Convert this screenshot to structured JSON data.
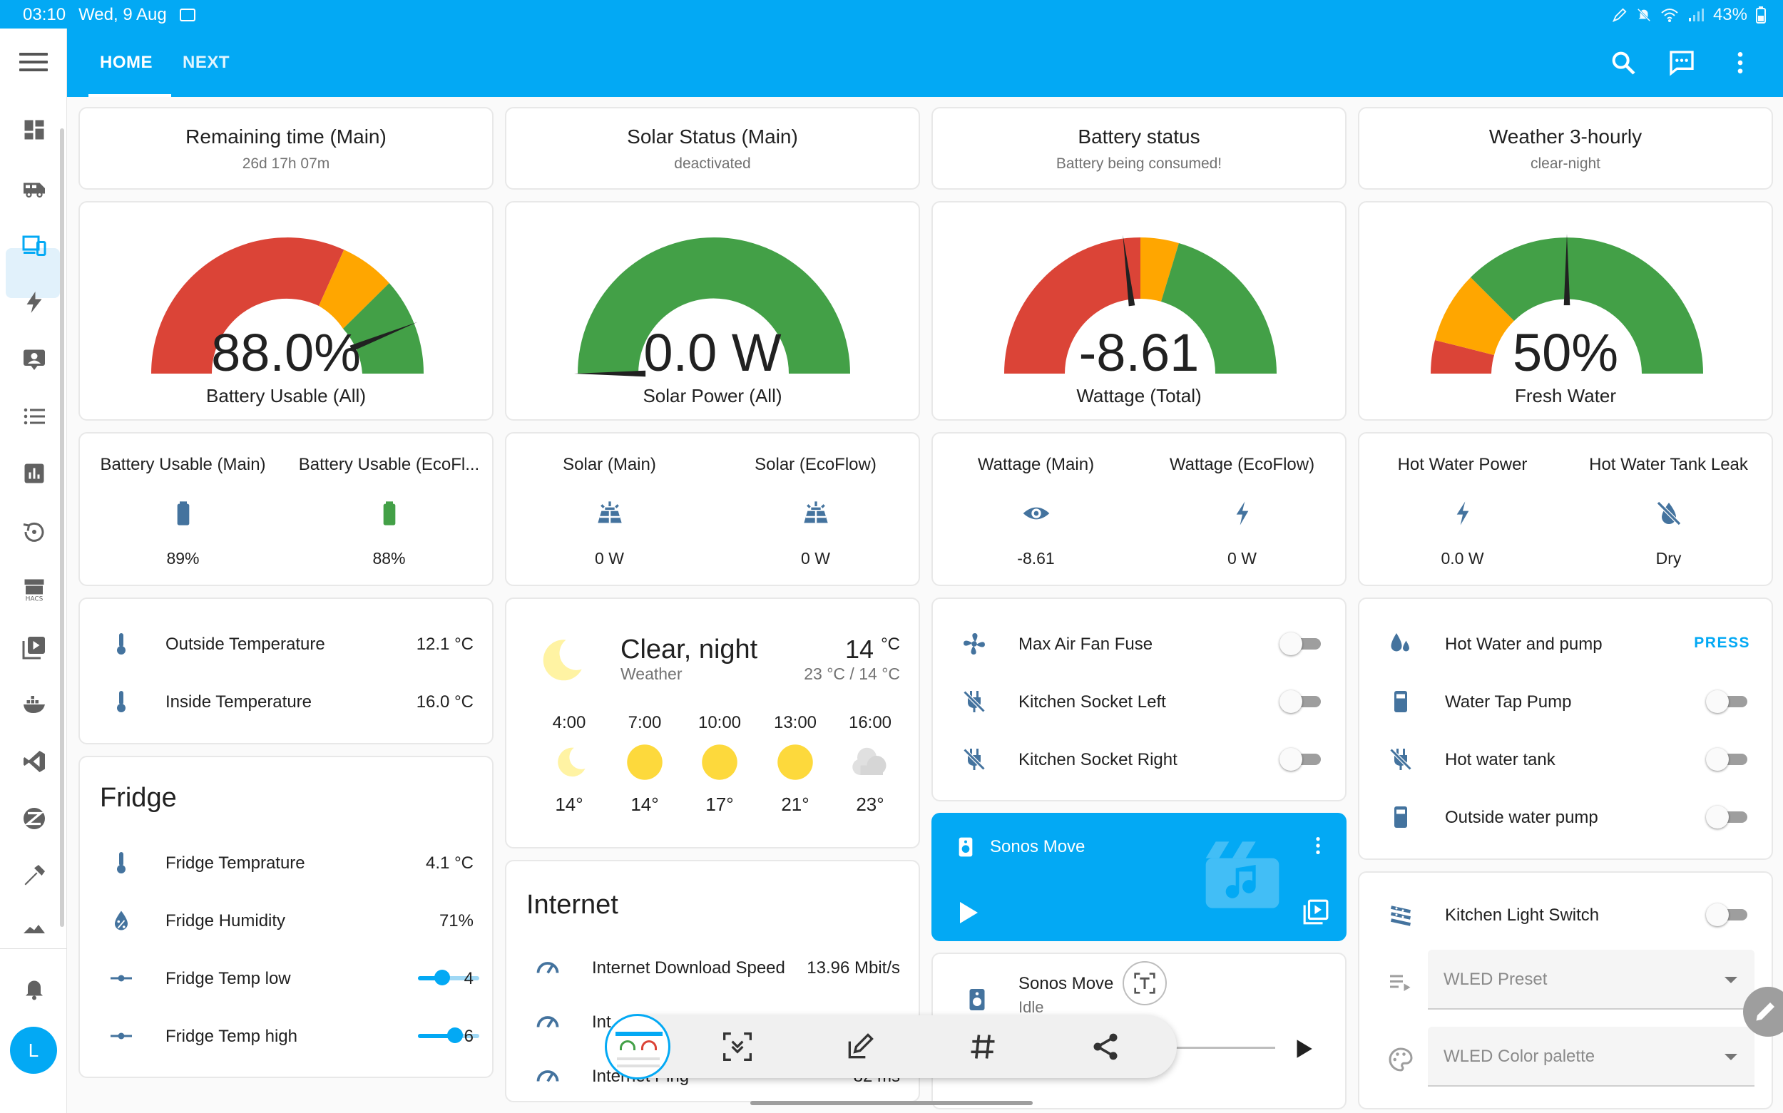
{
  "status_bar": {
    "time": "03:10",
    "date": "Wed, 9 Aug",
    "battery": "43%"
  },
  "header": {
    "tabs": [
      {
        "label": "HOME"
      },
      {
        "label": "NEXT"
      }
    ]
  },
  "sidebar": {
    "user_initial": "L"
  },
  "status_cards": [
    {
      "title": "Remaining time (Main)",
      "subtitle": "26d 17h 07m"
    },
    {
      "title": "Solar Status (Main)",
      "subtitle": "deactivated"
    },
    {
      "title": "Battery status",
      "subtitle": "Battery being consumed!"
    },
    {
      "title": "Weather 3-hourly",
      "subtitle": "clear-night"
    }
  ],
  "gauges": [
    {
      "value": "88.0%",
      "label": "Battery Usable (All)",
      "fraction": 0.88
    },
    {
      "value": "0.0 W",
      "label": "Solar Power (All)",
      "fraction": 0.0
    },
    {
      "value": "-8.61",
      "label": "Wattage (Total)",
      "fraction": 0.46
    },
    {
      "value": "50%",
      "label": "Fresh Water",
      "fraction": 0.5
    }
  ],
  "entity_cards": [
    {
      "items": [
        {
          "name": "Battery Usable (Main)",
          "value": "89%",
          "icon": "battery-icon"
        },
        {
          "name": "Battery Usable (EcoFl...",
          "value": "88%",
          "icon": "battery-icon"
        }
      ]
    },
    {
      "items": [
        {
          "name": "Solar (Main)",
          "value": "0 W",
          "icon": "solar-panel-icon"
        },
        {
          "name": "Solar (EcoFlow)",
          "value": "0 W",
          "icon": "solar-panel-icon"
        }
      ]
    },
    {
      "items": [
        {
          "name": "Wattage (Main)",
          "value": "-8.61",
          "icon": "eye-icon"
        },
        {
          "name": "Wattage (EcoFlow)",
          "value": "0 W",
          "icon": "flash-icon"
        }
      ]
    },
    {
      "items": [
        {
          "name": "Hot Water Power",
          "value": "0.0 W",
          "icon": "flash-icon"
        },
        {
          "name": "Hot Water Tank Leak",
          "value": "Dry",
          "icon": "water-off-icon"
        }
      ]
    }
  ],
  "temperature": {
    "rows": [
      {
        "name": "Outside Temperature",
        "value": "12.1 °C"
      },
      {
        "name": "Inside Temperature",
        "value": "16.0 °C"
      }
    ]
  },
  "fridge": {
    "title": "Fridge",
    "rows": [
      {
        "name": "Fridge Temprature",
        "value": "4.1 °C"
      },
      {
        "name": "Fridge Humidity",
        "value": "71%"
      },
      {
        "name": "Fridge Temp low",
        "value": "4",
        "level": 0.4
      },
      {
        "name": "Fridge Temp high",
        "value": "6",
        "level": 0.6
      }
    ]
  },
  "weather": {
    "condition": "Clear, night",
    "source": "Weather",
    "temp": "14",
    "unit": "°C",
    "range": "23 °C / 14 °C",
    "forecast": [
      {
        "time": "4:00",
        "temp": "14°",
        "icon": "moon-icon"
      },
      {
        "time": "7:00",
        "temp": "14°",
        "icon": "sun-icon"
      },
      {
        "time": "10:00",
        "temp": "17°",
        "icon": "sun-icon"
      },
      {
        "time": "13:00",
        "temp": "21°",
        "icon": "sun-icon"
      },
      {
        "time": "16:00",
        "temp": "23°",
        "icon": "cloud-icon"
      }
    ]
  },
  "internet": {
    "title": "Internet",
    "rows": [
      {
        "name": "Internet Download Speed",
        "value": "13.96 Mbit/s"
      },
      {
        "name": "Int",
        "value": ""
      },
      {
        "name": "Internet Ping",
        "value": "82 ms"
      }
    ]
  },
  "switches": {
    "rows": [
      {
        "name": "Max Air Fan Fuse"
      },
      {
        "name": "Kitchen Socket Left"
      },
      {
        "name": "Kitchen Socket Right"
      }
    ]
  },
  "media_card": {
    "name": "Sonos Move"
  },
  "media_row": {
    "name": "Sonos Move",
    "state": "Idle"
  },
  "water": {
    "rows": [
      {
        "name": "Hot Water and pump",
        "action": "PRESS"
      },
      {
        "name": "Water Tap Pump"
      },
      {
        "name": "Hot water tank"
      },
      {
        "name": "Outside water pump"
      }
    ]
  },
  "kitchen_light": {
    "switch_name": "Kitchen Light Switch",
    "preset_label": "WLED Preset",
    "palette_label": "WLED Color palette"
  },
  "colors": {
    "accent": "#03a9f4",
    "red": "#db4437",
    "orange": "#ffa600",
    "green": "#43a047",
    "icon": "#44739e",
    "sun": "#fdd93c"
  }
}
